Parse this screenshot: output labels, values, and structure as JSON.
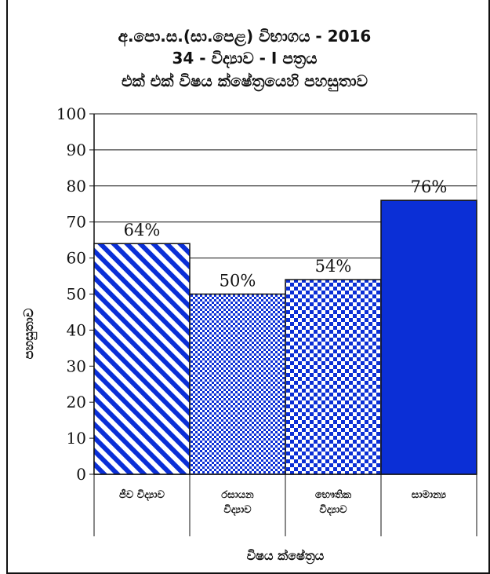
{
  "chart_data": {
    "type": "bar",
    "title_lines": [
      "අ.පො.ස.(සා.පෙළ) විභාගය - 2016",
      "34 - විද්‍යාව - I පත්‍රය",
      "එක් එක් විෂය ක්ෂේත්‍රයෙහි පහසුතාව"
    ],
    "categories": [
      [
        "ජීව විද්‍යාව"
      ],
      [
        "රසායන",
        "විද්‍යාව"
      ],
      [
        "භෞතික",
        "විද්‍යාව"
      ],
      [
        "සාමාන්‍ය"
      ]
    ],
    "values": [
      64,
      50,
      54,
      76
    ],
    "data_labels": [
      "64%",
      "50%",
      "54%",
      "76%"
    ],
    "bar_fills": [
      "diagonal-stripes",
      "small-checks",
      "checkerboard",
      "solid"
    ],
    "color": "#0b2fd6",
    "ylim": [
      0,
      100
    ],
    "yticks": [
      0,
      10,
      20,
      30,
      40,
      50,
      60,
      70,
      80,
      90,
      100
    ],
    "ylabel": "පහසුතාව",
    "xlabel": "විෂය ක්ෂේත්‍රය",
    "grid": true
  }
}
